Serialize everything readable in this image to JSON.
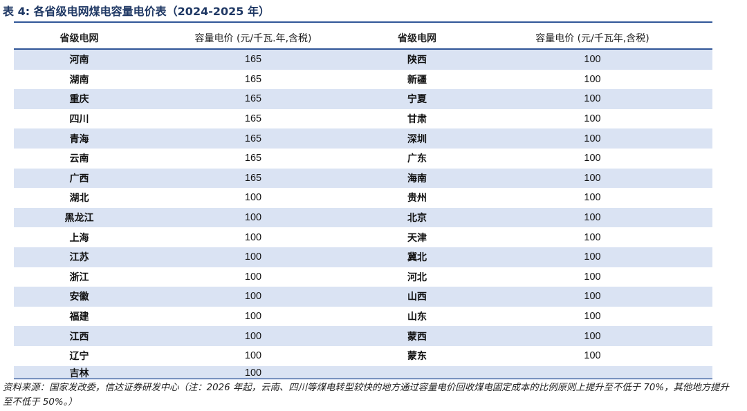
{
  "title": "表 4:  各省级电网煤电容量电价表（2024-2025 年）",
  "headers": {
    "left_province": "省级电网",
    "left_price": "容量电价 (元/千瓦.年,含税)",
    "right_province": "省级电网",
    "right_price": "容量电价 (元/千瓦年,含税)"
  },
  "rows": [
    {
      "lp": "河南",
      "lv": "165",
      "rp": "陕西",
      "rv": "100"
    },
    {
      "lp": "湖南",
      "lv": "165",
      "rp": "新疆",
      "rv": "100"
    },
    {
      "lp": "重庆",
      "lv": "165",
      "rp": "宁夏",
      "rv": "100"
    },
    {
      "lp": "四川",
      "lv": "165",
      "rp": "甘肃",
      "rv": "100"
    },
    {
      "lp": "青海",
      "lv": "165",
      "rp": "深圳",
      "rv": "100"
    },
    {
      "lp": "云南",
      "lv": "165",
      "rp": "广东",
      "rv": "100"
    },
    {
      "lp": "广西",
      "lv": "165",
      "rp": "海南",
      "rv": "100"
    },
    {
      "lp": "湖北",
      "lv": "100",
      "rp": "贵州",
      "rv": "100"
    },
    {
      "lp": "黑龙江",
      "lv": "100",
      "rp": "北京",
      "rv": "100"
    },
    {
      "lp": "上海",
      "lv": "100",
      "rp": "天津",
      "rv": "100"
    },
    {
      "lp": "江苏",
      "lv": "100",
      "rp": "冀北",
      "rv": "100"
    },
    {
      "lp": "浙江",
      "lv": "100",
      "rp": "河北",
      "rv": "100"
    },
    {
      "lp": "安徽",
      "lv": "100",
      "rp": "山西",
      "rv": "100"
    },
    {
      "lp": "福建",
      "lv": "100",
      "rp": "山东",
      "rv": "100"
    },
    {
      "lp": "江西",
      "lv": "100",
      "rp": "蒙西",
      "rv": "100"
    },
    {
      "lp": "辽宁",
      "lv": "100",
      "rp": "蒙东",
      "rv": "100"
    },
    {
      "lp": "吉林",
      "lv": "100",
      "rp": "",
      "rv": ""
    }
  ],
  "note": "资料来源：国家发改委，信达证券研发中心（注：2026 年起，云南、四川等煤电转型较快的地方通过容量电价回收煤电固定成本的比例原则上提升至不低于 70%，其他地方提升至不低于 50%。）",
  "colors": {
    "row_shade": "#dae3f3",
    "rule": "#2f5597",
    "title": "#1f3864"
  }
}
